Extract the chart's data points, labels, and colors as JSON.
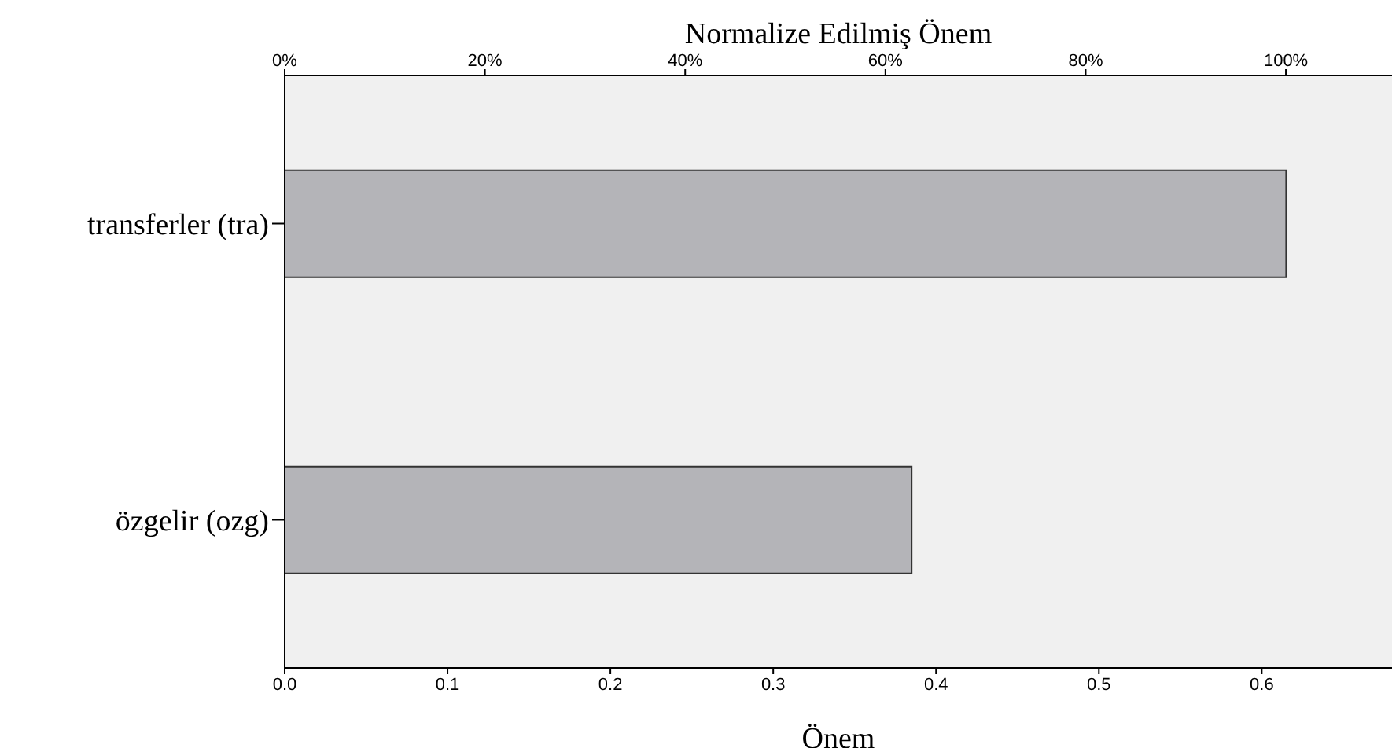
{
  "chart_data": {
    "type": "bar",
    "orientation": "horizontal",
    "categories": [
      "transferler (tra)",
      "özgelir (ozg)"
    ],
    "values": [
      0.615,
      0.385
    ],
    "color": "#b4b4b8",
    "xlabel": "Önem",
    "x2label": "Normalize Edilmiş Önem",
    "xlim": [
      0,
      0.68
    ],
    "xticks": [
      {
        "value": 0,
        "label": "0.0"
      },
      {
        "value": 0.1,
        "label": "0.1"
      },
      {
        "value": 0.2,
        "label": "0.2"
      },
      {
        "value": 0.3,
        "label": "0.3"
      },
      {
        "value": 0.4,
        "label": "0.4"
      },
      {
        "value": 0.5,
        "label": "0.5"
      },
      {
        "value": 0.6,
        "label": "0.6"
      }
    ],
    "x2lim": [
      0,
      110.6
    ],
    "x2ticks": [
      {
        "value": 0,
        "label": "0%"
      },
      {
        "value": 20,
        "label": "20%"
      },
      {
        "value": 40,
        "label": "40%"
      },
      {
        "value": 60,
        "label": "60%"
      },
      {
        "value": 80,
        "label": "80%"
      },
      {
        "value": 100,
        "label": "100%"
      }
    ],
    "grid": false,
    "legend": false
  }
}
